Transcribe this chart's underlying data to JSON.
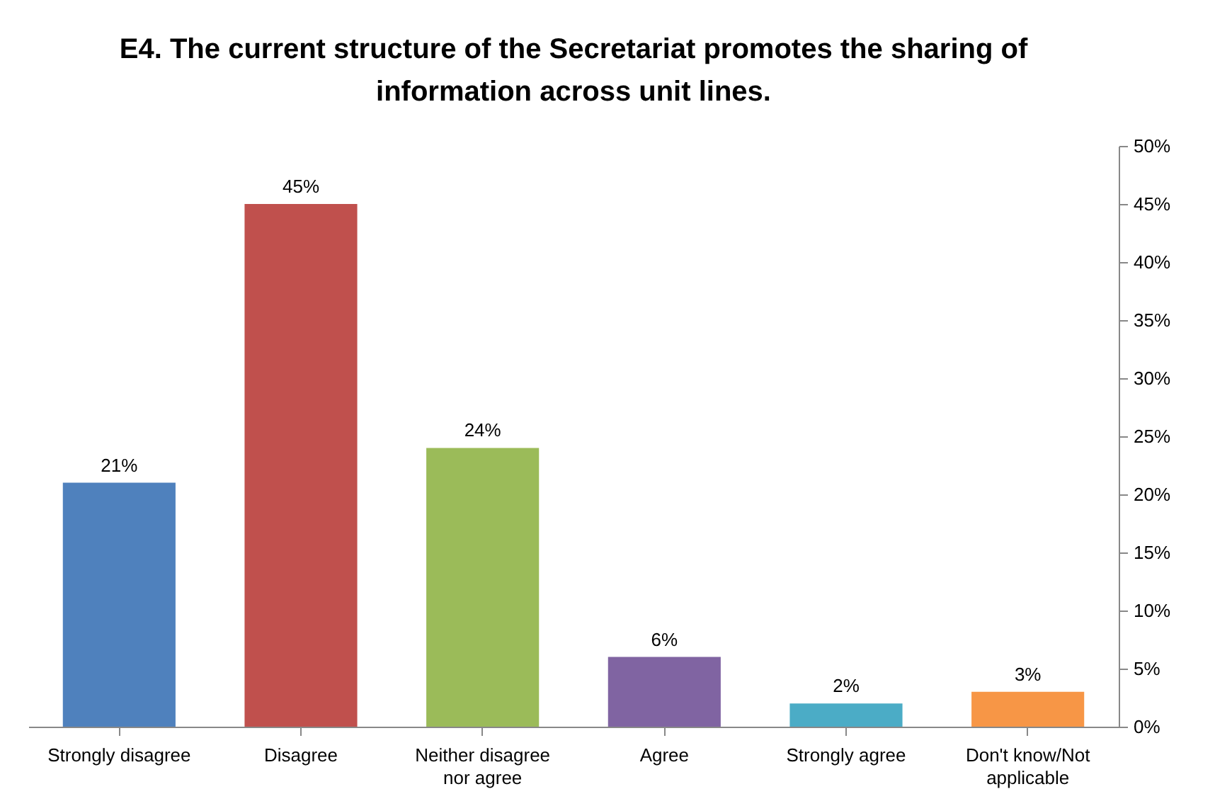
{
  "chart_data": {
    "type": "bar",
    "title": "E4. The current structure of the Secretariat promotes the sharing of information across unit lines.",
    "categories": [
      "Strongly disagree",
      "Disagree",
      "Neither disagree nor agree",
      "Agree",
      "Strongly agree",
      "Don't know/Not applicable"
    ],
    "values": [
      21,
      45,
      24,
      6,
      2,
      3
    ],
    "value_labels": [
      "21%",
      "45%",
      "24%",
      "6%",
      "2%",
      "3%"
    ],
    "colors": [
      "#4f81bd",
      "#c0504d",
      "#9bbb59",
      "#8064a2",
      "#4bacc6",
      "#f79646"
    ],
    "ylim": [
      0,
      50
    ],
    "yticks": [
      {
        "value": 0,
        "label": "0%"
      },
      {
        "value": 5,
        "label": "5%"
      },
      {
        "value": 10,
        "label": "10%"
      },
      {
        "value": 15,
        "label": "15%"
      },
      {
        "value": 20,
        "label": "20%"
      },
      {
        "value": 25,
        "label": "25%"
      },
      {
        "value": 30,
        "label": "30%"
      },
      {
        "value": 35,
        "label": "35%"
      },
      {
        "value": 40,
        "label": "40%"
      },
      {
        "value": 45,
        "label": "45%"
      },
      {
        "value": 50,
        "label": "50%"
      }
    ],
    "grid": false,
    "legend": false
  }
}
